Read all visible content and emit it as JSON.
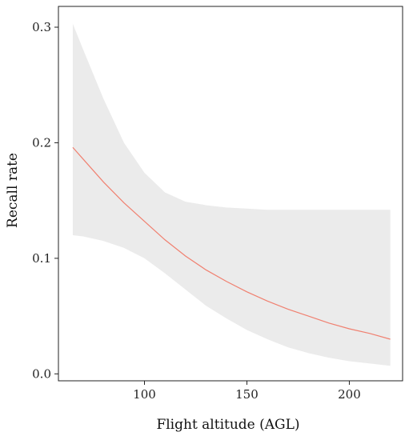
{
  "chart_data": {
    "type": "line",
    "title": "",
    "xlabel": "Flight altitude (AGL)",
    "ylabel": "Recall rate",
    "xlim": [
      58,
      226
    ],
    "ylim": [
      -0.006,
      0.318
    ],
    "xticks": [
      100,
      150,
      200
    ],
    "yticks": [
      0.0,
      0.1,
      0.2,
      0.3
    ],
    "ytick_labels": [
      "0.0",
      "0.1",
      "0.2",
      "0.3"
    ],
    "xtick_labels": [
      "100",
      "150",
      "200"
    ],
    "grid": false,
    "legend": "none",
    "series": [
      {
        "x": [
          65,
          70,
          80,
          90,
          100,
          110,
          120,
          130,
          140,
          150,
          160,
          170,
          180,
          190,
          200,
          210,
          220
        ],
        "values": [
          0.196,
          0.186,
          0.166,
          0.148,
          0.132,
          0.116,
          0.102,
          0.09,
          0.08,
          0.071,
          0.063,
          0.056,
          0.05,
          0.044,
          0.039,
          0.035,
          0.03
        ],
        "lower": [
          0.12,
          0.119,
          0.115,
          0.109,
          0.1,
          0.087,
          0.073,
          0.059,
          0.048,
          0.038,
          0.03,
          0.023,
          0.018,
          0.014,
          0.011,
          0.009,
          0.007
        ],
        "upper": [
          0.303,
          0.281,
          0.238,
          0.2,
          0.174,
          0.157,
          0.149,
          0.146,
          0.144,
          0.143,
          0.142,
          0.142,
          0.142,
          0.142,
          0.142,
          0.142,
          0.142
        ]
      }
    ],
    "colors": {
      "line": "#f08070",
      "band": "#ebebeb",
      "frame": "#222222"
    }
  }
}
